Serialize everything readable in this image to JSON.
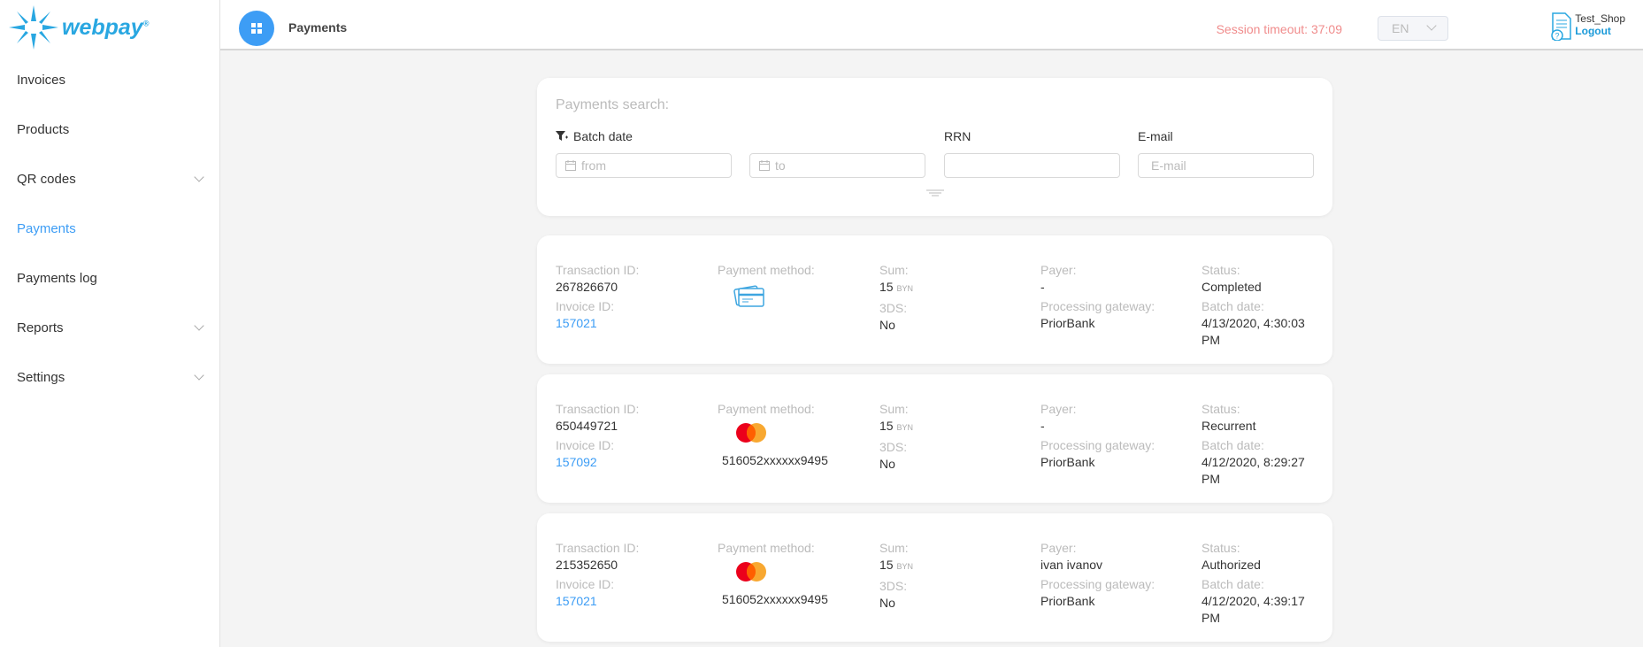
{
  "brand": {
    "name": "webpay",
    "reg": "®",
    "accent": "#29a7e1"
  },
  "sidebar": {
    "items": [
      {
        "label": "Invoices",
        "has_children": false,
        "active": false
      },
      {
        "label": "Products",
        "has_children": false,
        "active": false
      },
      {
        "label": "QR codes",
        "has_children": true,
        "active": false
      },
      {
        "label": "Payments",
        "has_children": false,
        "active": true
      },
      {
        "label": "Payments log",
        "has_children": false,
        "active": false
      },
      {
        "label": "Reports",
        "has_children": true,
        "active": false
      },
      {
        "label": "Settings",
        "has_children": true,
        "active": false
      }
    ]
  },
  "header": {
    "title": "Payments",
    "session": "Session timeout: 37:09",
    "lang": "EN",
    "user": "Test_Shop",
    "logout": "Logout"
  },
  "search": {
    "title": "Payments search:",
    "batch_date": "Batch date",
    "from_placeholder": "from",
    "to_placeholder": "to",
    "rrn": "RRN",
    "email": "E-mail",
    "email_placeholder": "E-mail"
  },
  "labels": {
    "tx": "Transaction ID:",
    "invoice": "Invoice ID:",
    "method": "Payment method:",
    "sum": "Sum:",
    "tds": "3DS:",
    "payer": "Payer:",
    "gateway": "Processing gateway:",
    "status": "Status:",
    "batch": "Batch date:"
  },
  "payments": [
    {
      "tx": "267826670",
      "invoice": "157021",
      "method": "card-icon",
      "pan": "",
      "sum": "15",
      "currency": "BYN",
      "tds": "No",
      "payer": "-",
      "gateway": "PriorBank",
      "status": "Completed",
      "batch": "4/13/2020, 4:30:03 PM"
    },
    {
      "tx": "650449721",
      "invoice": "157092",
      "method": "mastercard-icon",
      "pan": "516052xxxxxx9495",
      "sum": "15",
      "currency": "BYN",
      "tds": "No",
      "payer": "-",
      "gateway": "PriorBank",
      "status": "Recurrent",
      "batch": "4/12/2020, 8:29:27 PM"
    },
    {
      "tx": "215352650",
      "invoice": "157021",
      "method": "mastercard-icon",
      "pan": "516052xxxxxx9495",
      "sum": "15",
      "currency": "BYN",
      "tds": "No",
      "payer": "ivan ivanov",
      "gateway": "PriorBank",
      "status": "Authorized",
      "batch": "4/12/2020, 4:39:17 PM"
    }
  ]
}
